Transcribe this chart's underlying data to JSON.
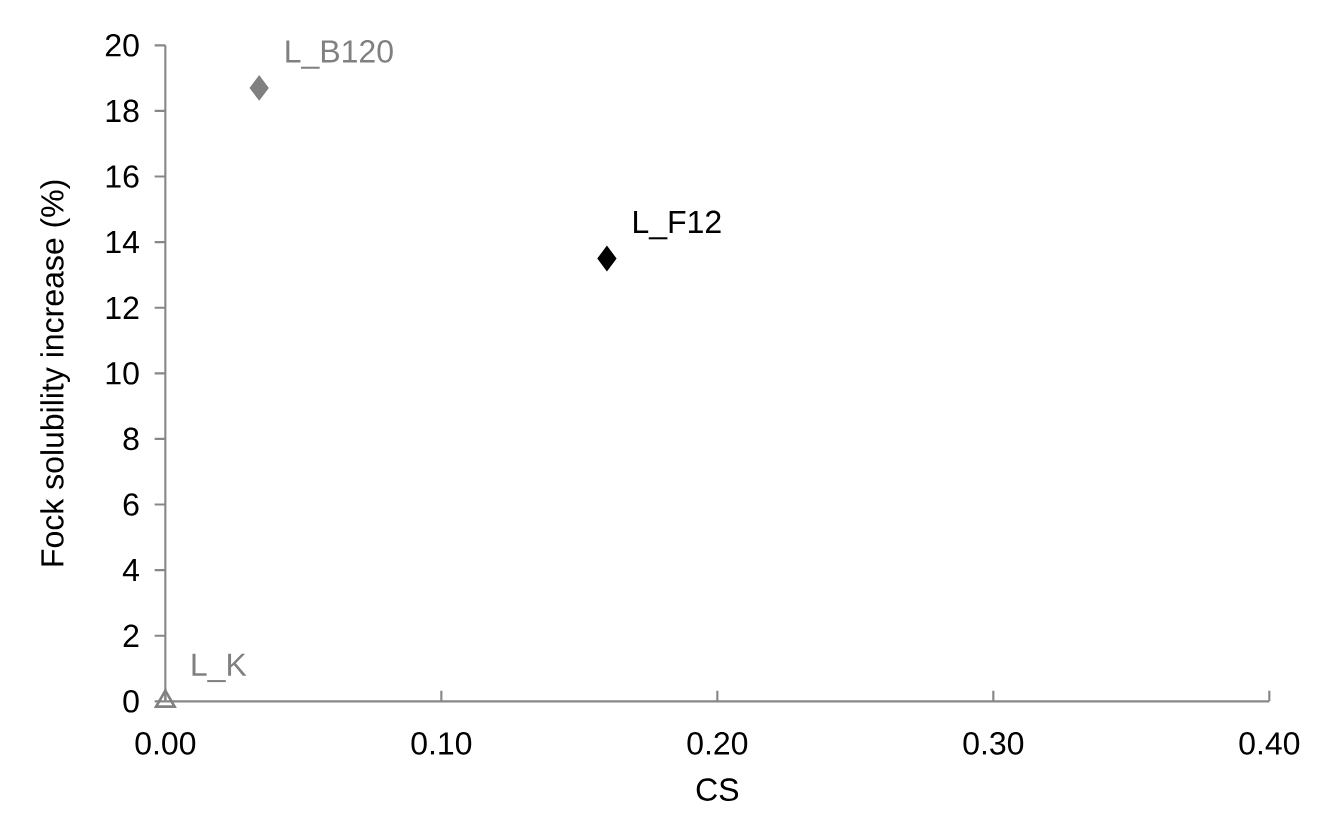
{
  "chart_data": {
    "type": "scatter",
    "xlabel": "CS",
    "ylabel": "Fock solubility increase (%)",
    "xlim": [
      0,
      0.4
    ],
    "ylim": [
      0,
      20
    ],
    "xticks": [
      {
        "value": 0,
        "label": "0.00"
      },
      {
        "value": 0.1,
        "label": "0.10"
      },
      {
        "value": 0.2,
        "label": "0.20"
      },
      {
        "value": 0.3,
        "label": "0.30"
      },
      {
        "value": 0.4,
        "label": "0.40"
      }
    ],
    "yticks": [
      0,
      2,
      4,
      6,
      8,
      10,
      12,
      14,
      16,
      18,
      20
    ],
    "grid": false,
    "legend": false,
    "series": [
      {
        "name": "L_B120",
        "color": "#808080",
        "marker": "diamond",
        "x": [
          0.034
        ],
        "values": [
          18.7
        ]
      },
      {
        "name": "L_F12",
        "color": "#000000",
        "marker": "diamond",
        "x": [
          0.16
        ],
        "values": [
          13.5
        ]
      },
      {
        "name": "L_K",
        "color": "#808080",
        "marker": "triangle",
        "x": [
          0
        ],
        "values": [
          0
        ]
      }
    ]
  }
}
